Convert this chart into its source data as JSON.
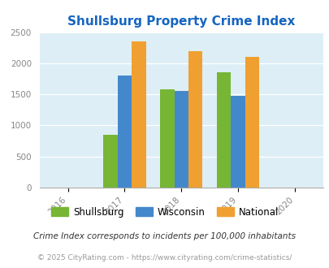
{
  "title": "Shullsburg Property Crime Index",
  "title_color": "#1565C0",
  "years": [
    2017,
    2018,
    2019
  ],
  "xticks": [
    2016,
    2017,
    2018,
    2019,
    2020
  ],
  "shullsburg": [
    850,
    1575,
    1850
  ],
  "wisconsin": [
    1800,
    1550,
    1475
  ],
  "national": [
    2350,
    2200,
    2100
  ],
  "bar_colors": {
    "shullsburg": "#77b535",
    "wisconsin": "#4488cc",
    "national": "#f0a030"
  },
  "ylim": [
    0,
    2500
  ],
  "yticks": [
    0,
    500,
    1000,
    1500,
    2000,
    2500
  ],
  "legend_labels": [
    "Shullsburg",
    "Wisconsin",
    "National"
  ],
  "footnote1": "Crime Index corresponds to incidents per 100,000 inhabitants",
  "footnote2": "© 2025 CityRating.com - https://www.cityrating.com/crime-statistics/",
  "bg_color": "#ddeef6",
  "bar_width": 0.25
}
